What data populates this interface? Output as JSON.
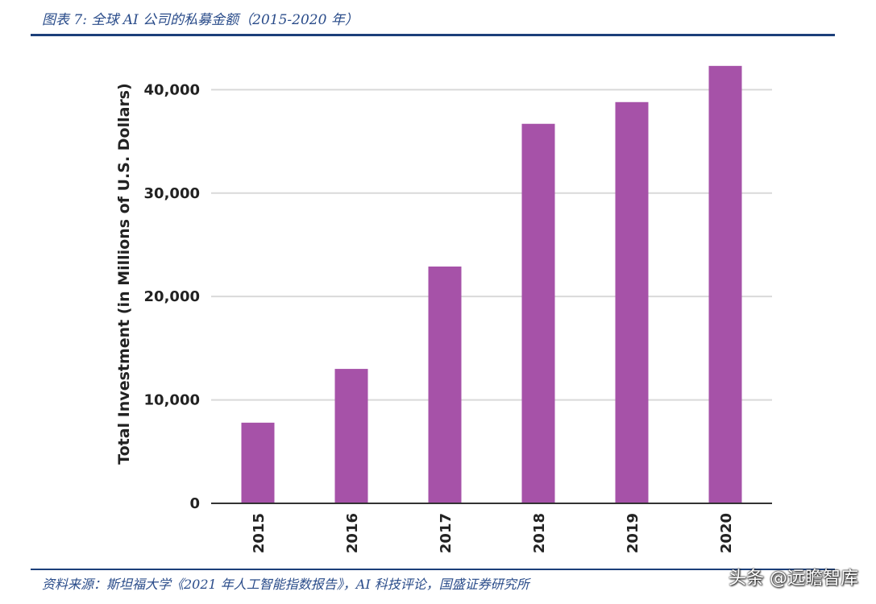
{
  "header": {
    "title": "图表 7:  全球 AI 公司的私募金额（2015-2020 年）"
  },
  "footer": {
    "source": "资料来源：斯坦福大学《2021 年人工智能指数报告》，AI 科技评论，国盛证券研究所"
  },
  "watermark": {
    "text": "头条 @远瞻智库"
  },
  "colors": {
    "bar": "#a652a8",
    "grid": "#d9d9d9",
    "axis": "#333333",
    "title": "#2a4c8a"
  },
  "chart_data": {
    "type": "bar",
    "title": "",
    "xlabel": "",
    "ylabel": "Total Investment (in Millions of U.S. Dollars)",
    "categories": [
      "2015",
      "2016",
      "2017",
      "2018",
      "2019",
      "2020"
    ],
    "values": [
      7800,
      13000,
      22900,
      36700,
      38800,
      42300
    ],
    "ylim": [
      0,
      44000
    ],
    "yticks": [
      0,
      10000,
      20000,
      30000,
      40000
    ],
    "ytick_labels": [
      "0",
      "10,000",
      "20,000",
      "30,000",
      "40,000"
    ],
    "grid": true,
    "legend": "none"
  }
}
